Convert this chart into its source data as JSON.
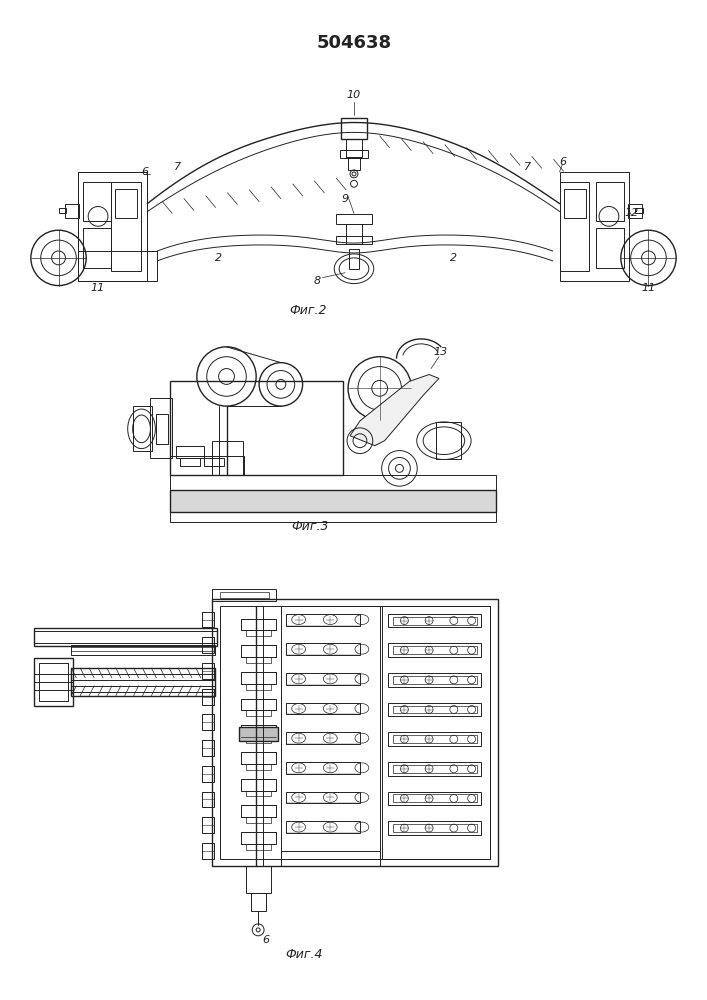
{
  "title": "504638",
  "fig2_label": "Фиг.2",
  "fig3_label": "Фиг.3",
  "fig4_label": "Фиг.4",
  "fig_width": 7.07,
  "fig_height": 10.0,
  "dpi": 100,
  "bg": "#ffffff",
  "lc": "#222222",
  "lw": 0.7,
  "lw2": 1.0
}
